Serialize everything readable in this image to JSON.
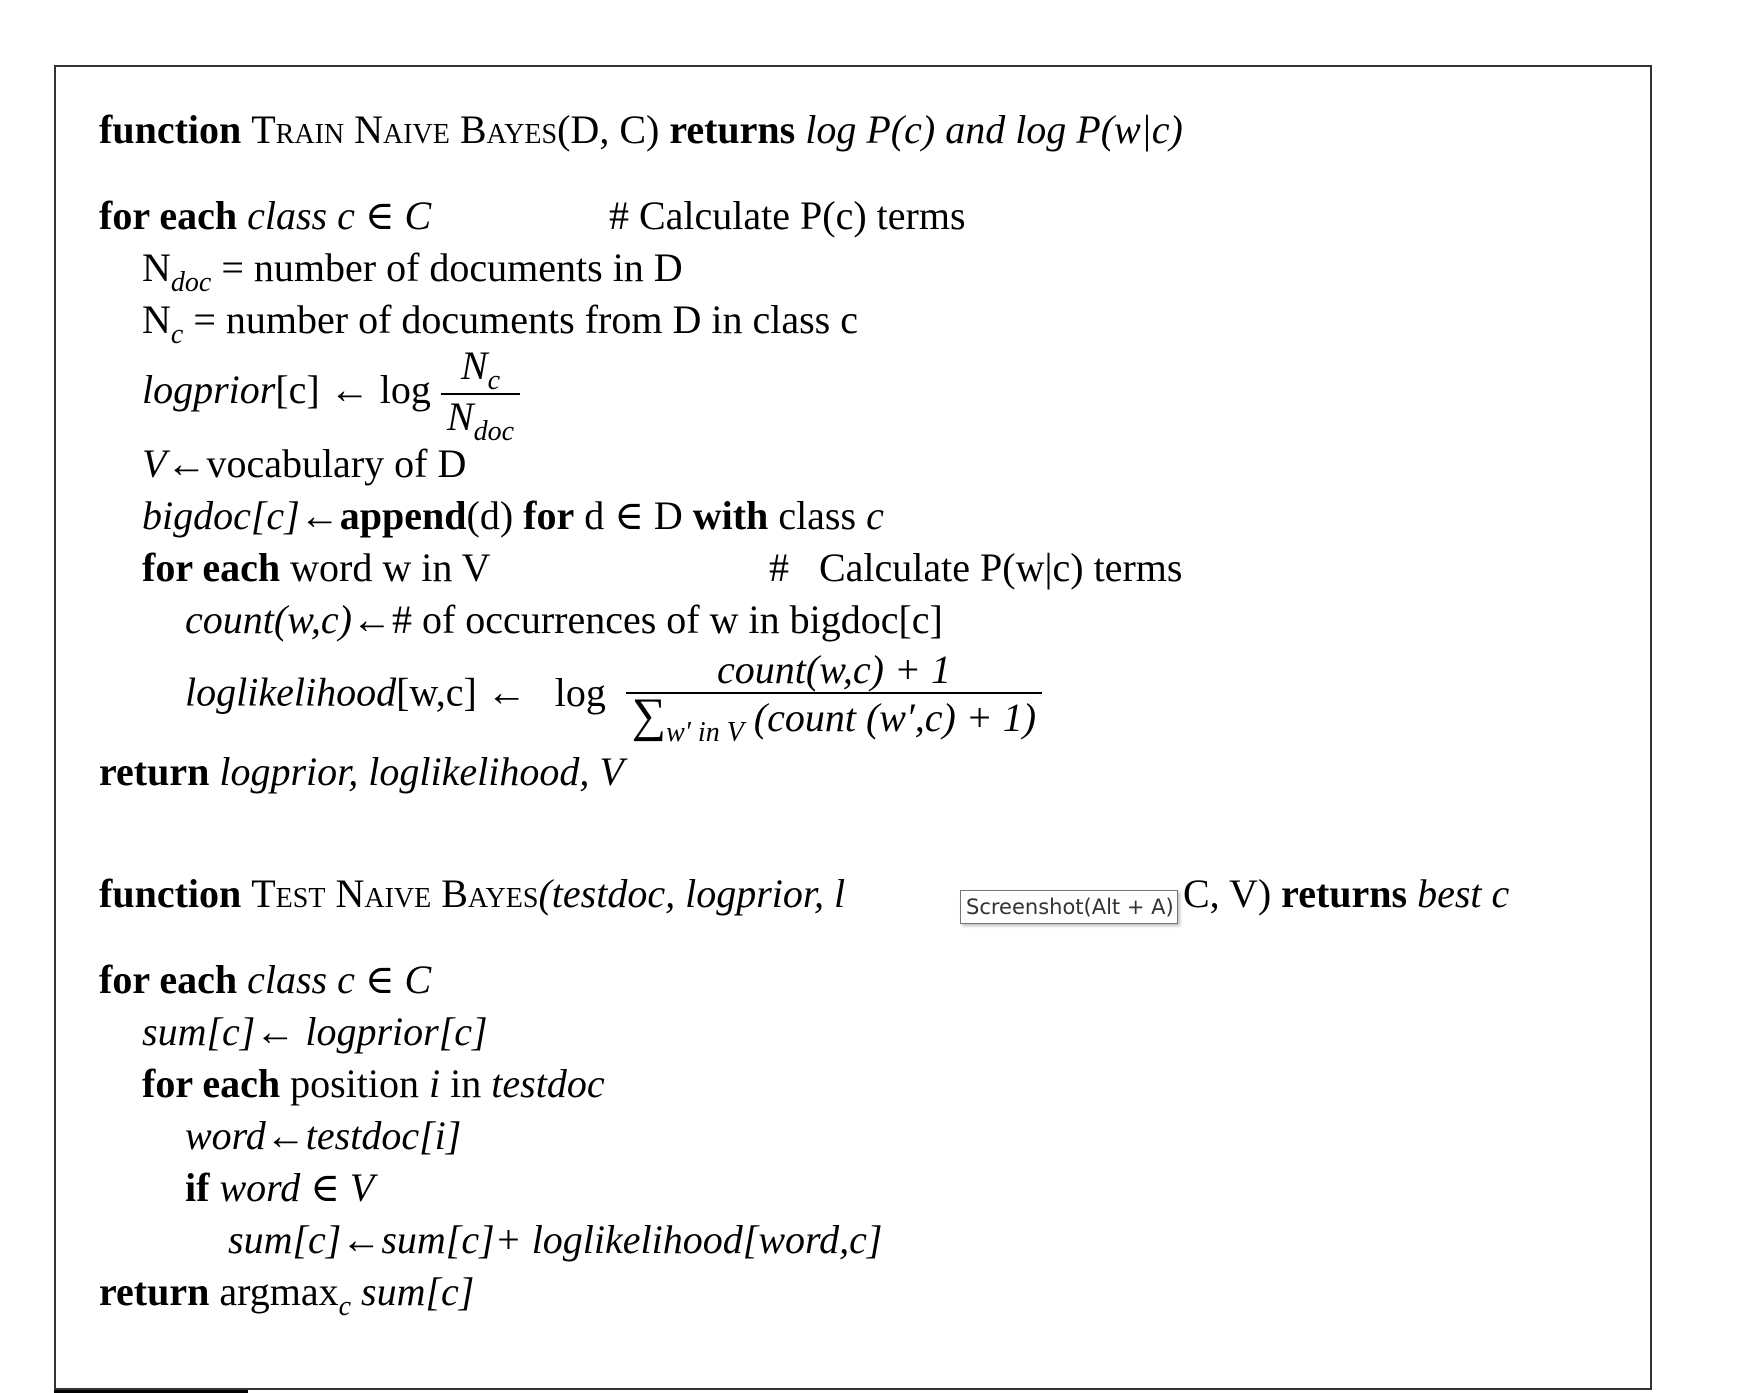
{
  "train": {
    "header": {
      "kw_function": "function",
      "name": "Train Naive Bayes",
      "args": "(D, C)",
      "kw_returns": "returns",
      "return_desc": "log P(c) and log P(w|c)"
    },
    "for_class": {
      "kw": "for each",
      "text": "class c ∈ C",
      "comment": "# Calculate P(c) terms"
    },
    "ndoc": {
      "var": "N",
      "sub": "doc",
      "text": "= number of documents in D"
    },
    "nc": {
      "var": "N",
      "sub": "c",
      "text": "= number of documents from D in class c"
    },
    "logprior": {
      "lhs": "logprior",
      "idx": "[c]",
      "arrow": "←",
      "log": "log",
      "num_var": "N",
      "num_sub": "c",
      "den_var": "N",
      "den_sub": "doc"
    },
    "vocab": {
      "var": "V",
      "arrow": "←",
      "text": "vocabulary of D"
    },
    "bigdoc": {
      "lhs": "bigdoc[c]",
      "arrow": "←",
      "fn": "append",
      "arg": "(d)",
      "kw_for": "for",
      "text": "d ∈ D",
      "kw_with": "with",
      "text2": "class",
      "cls": "c"
    },
    "for_word": {
      "kw": "for each",
      "text": "word w in V",
      "comment": "#   Calculate P(w|c) terms"
    },
    "count": {
      "lhs": "count(w,c)",
      "arrow": "←",
      "text": "# of occurrences of w in bigdoc[c]"
    },
    "loglik": {
      "lhs": "loglikelihood",
      "idx": "[w,c]",
      "arrow": "←",
      "log": "log",
      "num": "count(w,c) + 1",
      "den_sum": "∑",
      "den_sub": "w′ in V",
      "den_rest": "(count (w′,c) + 1)"
    },
    "return": {
      "kw": "return",
      "text": "logprior, loglikelihood, V"
    }
  },
  "test": {
    "header": {
      "kw_function": "function",
      "name": "Test Naive Bayes",
      "args_start": "(testdoc, logprior, l",
      "args_end": "C, V)",
      "kw_returns": "returns",
      "return_desc": "best c"
    },
    "for_class": {
      "kw": "for each",
      "text": "class c ∈ C"
    },
    "sum_init": {
      "lhs": "sum[c]",
      "arrow": "←",
      "rhs": "logprior[c]"
    },
    "for_pos": {
      "kw": "for each",
      "text": "position",
      "var": "i",
      "text2": "in",
      "doc": "testdoc"
    },
    "word": {
      "lhs": "word",
      "arrow": "←",
      "rhs": "testdoc[i]"
    },
    "if": {
      "kw": "if",
      "text": "word ∈ V"
    },
    "sum_update": {
      "lhs": "sum[c]",
      "arrow": "←",
      "rhs": "sum[c]+",
      "term": "loglikelihood[word,c]"
    },
    "return": {
      "kw": "return",
      "fn": "argmax",
      "sub": "c",
      "text": "sum[c]"
    }
  },
  "tooltip": {
    "text": "Screenshot(Alt + A)"
  }
}
